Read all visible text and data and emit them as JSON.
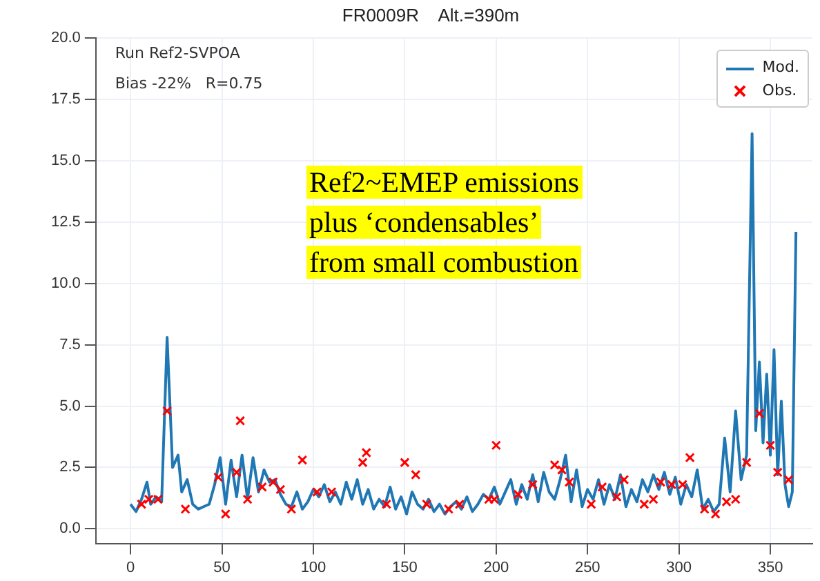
{
  "chart_data": {
    "type": "line",
    "title": "FR0009R    Alt.=390m",
    "annotations": [
      "Run Ref2-SVPOA",
      "Bias -22%   R=0.75",
      "Ref2~EMEP emissions",
      "plus ‘condensables’",
      "from small combustion"
    ],
    "xlim": [
      -19,
      373
    ],
    "xticks": [
      0,
      50,
      100,
      150,
      200,
      250,
      300,
      350
    ],
    "ylim": [
      -0.6,
      20
    ],
    "yticks": [
      {
        "value": 0,
        "label": "0.0"
      },
      {
        "value": 2.5,
        "label": "2.5"
      },
      {
        "value": 5,
        "label": "5.0"
      },
      {
        "value": 7.5,
        "label": "7.5"
      },
      {
        "value": 10,
        "label": "10.0"
      },
      {
        "value": 12.5,
        "label": "12.5"
      },
      {
        "value": 15,
        "label": "15.0"
      },
      {
        "value": 17.5,
        "label": "17.5"
      },
      {
        "value": 20,
        "label": "20.0"
      }
    ],
    "grid": true,
    "legend": "top right",
    "series": [
      {
        "name": "Mod.",
        "type": "line",
        "color": "#1f77b4",
        "marker": "none",
        "line_style": "solid",
        "x": [
          0,
          3,
          6,
          9,
          11,
          14,
          17,
          20,
          23,
          26,
          28,
          31,
          34,
          37,
          40,
          43,
          46,
          49,
          52,
          55,
          58,
          61,
          64,
          67,
          70,
          73,
          76,
          79,
          82,
          85,
          88,
          91,
          94,
          97,
          100,
          103,
          106,
          109,
          112,
          115,
          118,
          121,
          124,
          127,
          130,
          133,
          136,
          139,
          142,
          145,
          148,
          151,
          154,
          157,
          160,
          163,
          166,
          169,
          172,
          175,
          178,
          181,
          184,
          187,
          190,
          193,
          196,
          199,
          202,
          205,
          208,
          211,
          214,
          217,
          220,
          223,
          226,
          229,
          232,
          235,
          238,
          241,
          244,
          247,
          250,
          253,
          256,
          259,
          262,
          265,
          268,
          271,
          274,
          277,
          280,
          283,
          286,
          289,
          292,
          295,
          298,
          301,
          304,
          307,
          310,
          313,
          316,
          319,
          322,
          325,
          328,
          331,
          334,
          337,
          340,
          342,
          344,
          346,
          348,
          350,
          352,
          354,
          356,
          358,
          360,
          362,
          364
        ],
        "values": [
          1.0,
          0.7,
          1.2,
          1.9,
          1.0,
          1.3,
          1.1,
          7.8,
          2.5,
          3.0,
          1.5,
          2.0,
          1.0,
          0.8,
          0.9,
          1.0,
          1.8,
          2.9,
          1.0,
          2.8,
          1.3,
          3.0,
          1.2,
          2.9,
          1.5,
          2.4,
          1.9,
          2.0,
          1.4,
          1.0,
          0.9,
          1.5,
          0.8,
          1.1,
          1.6,
          1.3,
          1.8,
          1.1,
          1.5,
          1.0,
          1.9,
          1.2,
          2.0,
          1.0,
          1.6,
          0.8,
          1.2,
          0.9,
          1.7,
          0.8,
          1.3,
          0.6,
          1.5,
          1.0,
          0.8,
          1.2,
          0.7,
          1.0,
          0.6,
          0.9,
          1.1,
          0.8,
          1.3,
          0.7,
          1.0,
          1.4,
          1.2,
          1.7,
          1.0,
          1.5,
          2.0,
          1.0,
          1.8,
          1.2,
          2.2,
          1.1,
          2.3,
          1.5,
          1.2,
          2.0,
          3.0,
          1.1,
          2.4,
          0.9,
          1.6,
          1.2,
          2.0,
          1.0,
          1.8,
          1.2,
          2.2,
          0.9,
          1.6,
          1.1,
          2.0,
          1.5,
          2.2,
          1.6,
          2.3,
          1.4,
          2.1,
          1.0,
          1.8,
          1.3,
          2.4,
          0.8,
          1.2,
          0.7,
          1.0,
          3.7,
          1.5,
          4.8,
          2.0,
          3.0,
          16.1,
          4.0,
          6.8,
          3.5,
          6.3,
          3.0,
          7.3,
          2.2,
          5.2,
          1.8,
          0.9,
          1.5,
          12.1
        ]
      },
      {
        "name": "Obs.",
        "type": "scatter",
        "color": "#ff0000",
        "marker": "cross",
        "x": [
          6,
          10,
          15,
          20,
          30,
          48,
          52,
          58,
          60,
          64,
          72,
          78,
          82,
          88,
          94,
          102,
          110,
          127,
          129,
          140,
          150,
          156,
          162,
          174,
          180,
          196,
          199,
          200,
          212,
          220,
          232,
          236,
          240,
          252,
          258,
          266,
          270,
          281,
          286,
          290,
          296,
          302,
          306,
          314,
          320,
          326,
          331,
          337,
          344,
          350,
          354,
          360
        ],
        "values": [
          1.0,
          1.2,
          1.2,
          4.8,
          0.8,
          2.1,
          0.6,
          2.3,
          4.4,
          1.2,
          1.7,
          1.9,
          1.6,
          0.8,
          2.8,
          1.5,
          1.5,
          2.7,
          3.1,
          1.0,
          2.7,
          2.2,
          1.0,
          0.8,
          1.0,
          1.2,
          1.2,
          3.4,
          1.4,
          1.8,
          2.6,
          2.4,
          1.9,
          1.0,
          1.7,
          1.3,
          2.0,
          1.0,
          1.2,
          1.9,
          1.8,
          1.8,
          2.9,
          0.8,
          0.6,
          1.1,
          1.2,
          2.7,
          4.7,
          3.4,
          2.3,
          2.0
        ]
      }
    ]
  }
}
